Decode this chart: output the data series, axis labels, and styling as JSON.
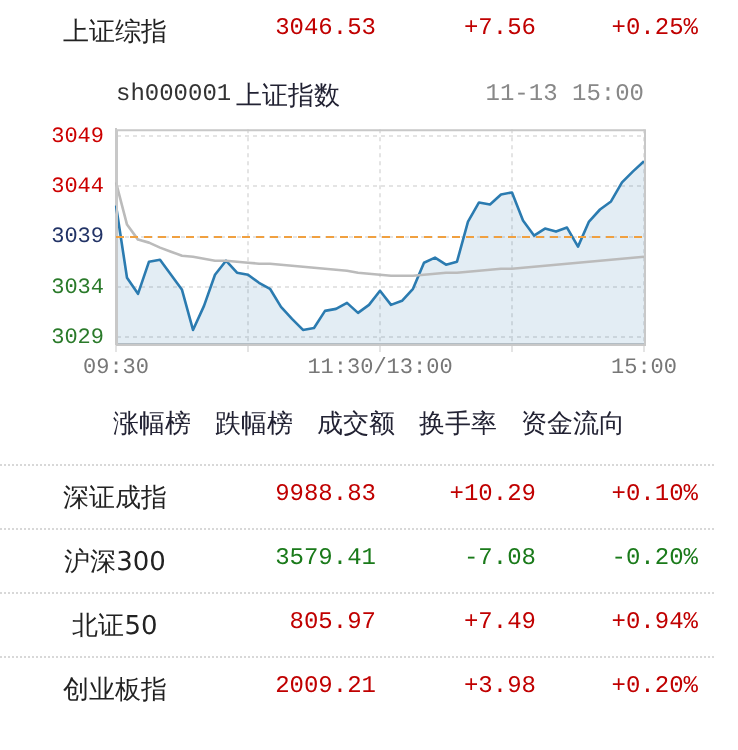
{
  "chart_data": [
    {
      "type": "other",
      "annotations": [
        "上证综指",
        "3046.53",
        "+7.56",
        "+0.25%"
      ],
      "colors": [
        "#222222",
        "#c00000",
        "#c00000",
        "#c00000"
      ]
    },
    {
      "type": "line",
      "title": "上证指数",
      "subtitle": "sh000001",
      "annotations": [
        "11-13 15:00"
      ],
      "categories": [
        "09:30",
        null,
        null,
        null,
        null,
        null,
        null,
        null,
        null,
        null,
        null,
        null,
        null,
        null,
        null,
        null,
        null,
        null,
        null,
        null,
        null,
        null,
        null,
        null,
        "11:30/13:00",
        null,
        null,
        null,
        null,
        null,
        null,
        null,
        null,
        null,
        null,
        null,
        null,
        null,
        null,
        null,
        null,
        null,
        null,
        null,
        null,
        null,
        null,
        null,
        "15:00"
      ],
      "ylim": [
        3028.3,
        3049.7
      ],
      "yticks": [
        3029,
        3034,
        3039,
        3044,
        3049
      ],
      "grid": true,
      "marker": "none",
      "ref_lines": [
        {
          "axis": "y",
          "value": 3038.97,
          "color": "#f0a040",
          "line_style": "dashed"
        }
      ],
      "series": [
        {
          "type": "area",
          "color": "#2b7bb0",
          "values": [
            3042.1,
            3034.9,
            3033.3,
            3036.5,
            3036.7,
            3035.2,
            3033.7,
            3029.7,
            3032.1,
            3035.2,
            3036.6,
            3035.4,
            3035.2,
            3034.4,
            3033.8,
            3032.0,
            3030.8,
            3029.7,
            3029.9,
            3031.6,
            3031.8,
            3032.4,
            3031.4,
            3032.2,
            3033.6,
            3032.2,
            3032.6,
            3033.8,
            3036.4,
            3036.9,
            3036.2,
            3036.5,
            3040.5,
            3042.4,
            3042.2,
            3043.2,
            3043.4,
            3040.6,
            3039.1,
            3039.8,
            3039.5,
            3039.9,
            3038.0,
            3040.5,
            3041.7,
            3042.5,
            3044.4,
            3045.5,
            3046.5
          ]
        },
        {
          "color": "#bbbbbb",
          "values": [
            3044.4,
            3040.2,
            3038.7,
            3038.4,
            3037.9,
            3037.5,
            3037.1,
            3037.0,
            3036.8,
            3036.6,
            3036.6,
            3036.5,
            3036.4,
            3036.3,
            3036.3,
            3036.2,
            3036.1,
            3036.0,
            3035.9,
            3035.8,
            3035.7,
            3035.6,
            3035.4,
            3035.3,
            3035.2,
            3035.1,
            3035.1,
            3035.1,
            3035.2,
            3035.3,
            3035.4,
            3035.4,
            3035.5,
            3035.6,
            3035.7,
            3035.8,
            3035.8,
            3035.9,
            3036.0,
            3036.1,
            3036.2,
            3036.3,
            3036.4,
            3036.5,
            3036.6,
            3036.7,
            3036.8,
            3036.9,
            3037.0
          ]
        }
      ]
    },
    {
      "type": "other",
      "annotations": [
        "涨幅榜",
        "跌幅榜",
        "成交额",
        "换手率",
        "资金流向"
      ]
    },
    {
      "type": "other",
      "annotations": [
        "深证成指",
        "9988.83",
        "+10.29",
        "+0.10%"
      ],
      "colors": [
        "#222222",
        "#c00000",
        "#c00000",
        "#c00000"
      ]
    },
    {
      "type": "other",
      "annotations": [
        "沪深300",
        "3579.41",
        "-7.08",
        "-0.20%"
      ],
      "colors": [
        "#222222",
        "#1a7a1a",
        "#1a7a1a",
        "#1a7a1a"
      ]
    },
    {
      "type": "other",
      "annotations": [
        "北证50",
        "805.97",
        "+7.49",
        "+0.94%"
      ],
      "colors": [
        "#222222",
        "#c00000",
        "#c00000",
        "#c00000"
      ]
    },
    {
      "type": "other",
      "annotations": [
        "创业板指",
        "2009.21",
        "+3.98",
        "+0.20%"
      ],
      "colors": [
        "#222222",
        "#c00000",
        "#c00000",
        "#c00000"
      ]
    }
  ]
}
